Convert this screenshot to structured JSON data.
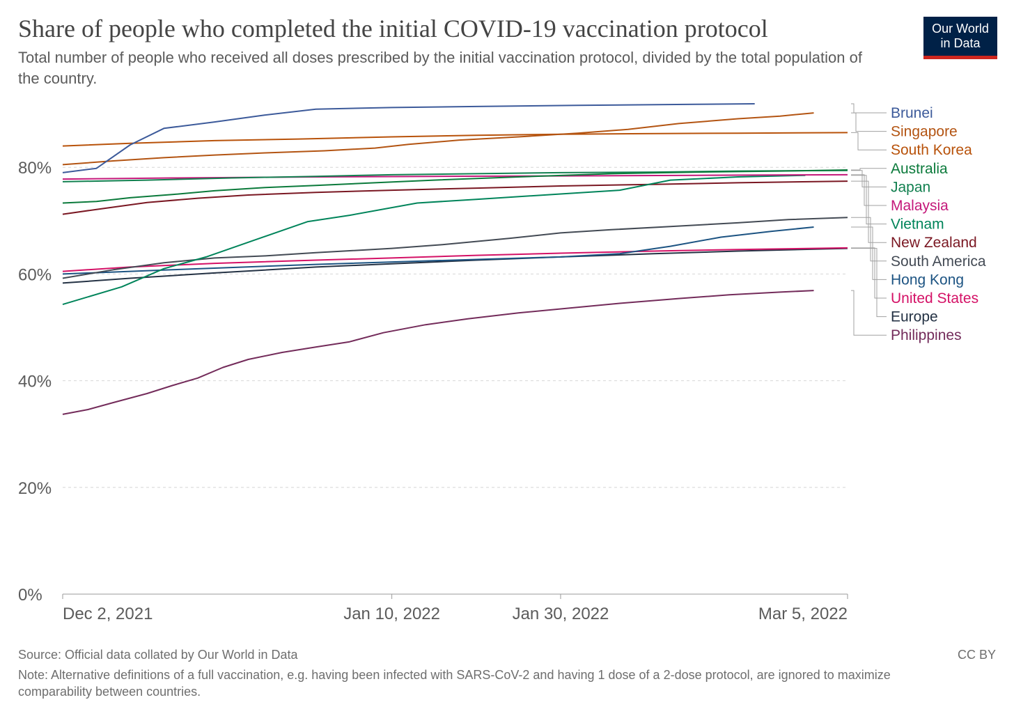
{
  "header": {
    "title": "Share of people who completed the initial COVID-19 vaccination protocol",
    "subtitle": "Total number of people who received all doses prescribed by the initial vaccination protocol, divided by the total population of the country."
  },
  "logo": {
    "line1": "Our World",
    "line2": "in Data"
  },
  "footer": {
    "source": "Source: Official data collated by Our World in Data",
    "note": "Note: Alternative definitions of a full vaccination, e.g. having been infected with SARS-CoV-2 and having 1 dose of a 2-dose protocol, are ignored to maximize comparability between countries.",
    "license": "CC BY"
  },
  "colors": {
    "logo_bg": "#002147",
    "logo_bar": "#ce261e"
  },
  "chart_data": {
    "type": "line",
    "x_start": "2021-12-02",
    "x_end": "2022-03-05",
    "ylim": [
      0,
      100
    ],
    "grid": true,
    "legend_placement": "right",
    "x_ticks": [
      {
        "label": "Dec 2, 2021",
        "date": "2021-12-02"
      },
      {
        "label": "Jan 10, 2022",
        "date": "2022-01-10"
      },
      {
        "label": "Jan 30, 2022",
        "date": "2022-01-30"
      },
      {
        "label": "Mar 5, 2022",
        "date": "2022-03-05"
      }
    ],
    "y_ticks": [
      {
        "label": "0%",
        "value": 0
      },
      {
        "label": "20%",
        "value": 20
      },
      {
        "label": "40%",
        "value": 40
      },
      {
        "label": "60%",
        "value": 60
      },
      {
        "label": "80%",
        "value": 80
      }
    ],
    "series": [
      {
        "name": "Brunei",
        "color": "#3c5a9a",
        "points": [
          [
            "2021-12-02",
            79.0
          ],
          [
            "2021-12-06",
            79.8
          ],
          [
            "2021-12-10",
            84.2
          ],
          [
            "2021-12-14",
            87.3
          ],
          [
            "2021-12-20",
            88.5
          ],
          [
            "2021-12-26",
            89.8
          ],
          [
            "2022-01-01",
            90.9
          ],
          [
            "2022-01-10",
            91.2
          ],
          [
            "2022-01-20",
            91.4
          ],
          [
            "2022-02-01",
            91.6
          ],
          [
            "2022-02-15",
            91.8
          ],
          [
            "2022-02-22",
            91.9
          ]
        ]
      },
      {
        "name": "Singapore",
        "color": "#b35412",
        "points": [
          [
            "2021-12-02",
            80.5
          ],
          [
            "2021-12-08",
            81.2
          ],
          [
            "2021-12-14",
            81.8
          ],
          [
            "2021-12-20",
            82.3
          ],
          [
            "2021-12-26",
            82.7
          ],
          [
            "2022-01-02",
            83.1
          ],
          [
            "2022-01-08",
            83.6
          ],
          [
            "2022-01-12",
            84.3
          ],
          [
            "2022-01-18",
            85.1
          ],
          [
            "2022-01-25",
            85.7
          ],
          [
            "2022-02-01",
            86.4
          ],
          [
            "2022-02-07",
            87.1
          ],
          [
            "2022-02-13",
            88.2
          ],
          [
            "2022-02-20",
            89.1
          ],
          [
            "2022-02-25",
            89.6
          ],
          [
            "2022-03-01",
            90.2
          ]
        ]
      },
      {
        "name": "South Korea",
        "color": "#b8520a",
        "points": [
          [
            "2021-12-02",
            84.0
          ],
          [
            "2021-12-10",
            84.5
          ],
          [
            "2021-12-20",
            85.0
          ],
          [
            "2021-12-30",
            85.3
          ],
          [
            "2022-01-10",
            85.7
          ],
          [
            "2022-01-20",
            86.0
          ],
          [
            "2022-01-30",
            86.2
          ],
          [
            "2022-02-09",
            86.3
          ],
          [
            "2022-02-20",
            86.4
          ],
          [
            "2022-03-05",
            86.5
          ]
        ]
      },
      {
        "name": "Australia",
        "color": "#0b7a3b",
        "points": [
          [
            "2021-12-02",
            73.3
          ],
          [
            "2021-12-06",
            73.6
          ],
          [
            "2021-12-10",
            74.3
          ],
          [
            "2021-12-15",
            74.9
          ],
          [
            "2021-12-20",
            75.6
          ],
          [
            "2021-12-26",
            76.2
          ],
          [
            "2022-01-01",
            76.6
          ],
          [
            "2022-01-08",
            77.1
          ],
          [
            "2022-01-15",
            77.6
          ],
          [
            "2022-01-25",
            78.2
          ],
          [
            "2022-02-05",
            78.8
          ],
          [
            "2022-02-15",
            79.1
          ],
          [
            "2022-02-25",
            79.3
          ],
          [
            "2022-03-05",
            79.5
          ]
        ]
      },
      {
        "name": "Japan",
        "color": "#128050",
        "points": [
          [
            "2021-12-02",
            77.3
          ],
          [
            "2021-12-12",
            77.6
          ],
          [
            "2021-12-22",
            78.0
          ],
          [
            "2022-01-01",
            78.3
          ],
          [
            "2022-01-10",
            78.6
          ],
          [
            "2022-01-20",
            78.8
          ],
          [
            "2022-01-30",
            79.0
          ],
          [
            "2022-02-10",
            79.1
          ],
          [
            "2022-02-20",
            79.3
          ],
          [
            "2022-03-05",
            79.4
          ]
        ]
      },
      {
        "name": "Malaysia",
        "color": "#c4187a",
        "points": [
          [
            "2021-12-02",
            77.8
          ],
          [
            "2021-12-15",
            78.0
          ],
          [
            "2022-01-01",
            78.2
          ],
          [
            "2022-01-15",
            78.3
          ],
          [
            "2022-02-01",
            78.4
          ],
          [
            "2022-02-15",
            78.5
          ],
          [
            "2022-03-05",
            78.6
          ]
        ]
      },
      {
        "name": "Vietnam",
        "color": "#00845a",
        "points": [
          [
            "2021-12-02",
            54.3
          ],
          [
            "2021-12-09",
            57.6
          ],
          [
            "2021-12-14",
            61.0
          ],
          [
            "2021-12-19",
            63.2
          ],
          [
            "2021-12-25",
            66.5
          ],
          [
            "2021-12-31",
            69.8
          ],
          [
            "2022-01-05",
            71.0
          ],
          [
            "2022-01-13",
            73.3
          ],
          [
            "2022-01-20",
            74.0
          ],
          [
            "2022-01-30",
            75.0
          ],
          [
            "2022-02-06",
            75.7
          ],
          [
            "2022-02-12",
            77.6
          ],
          [
            "2022-02-20",
            78.2
          ],
          [
            "2022-02-28",
            78.5
          ]
        ]
      },
      {
        "name": "New Zealand",
        "color": "#7a1722",
        "points": [
          [
            "2021-12-02",
            71.2
          ],
          [
            "2021-12-06",
            72.1
          ],
          [
            "2021-12-12",
            73.4
          ],
          [
            "2021-12-18",
            74.2
          ],
          [
            "2021-12-24",
            74.8
          ],
          [
            "2022-01-01",
            75.3
          ],
          [
            "2022-01-10",
            75.7
          ],
          [
            "2022-01-20",
            76.1
          ],
          [
            "2022-01-30",
            76.5
          ],
          [
            "2022-02-10",
            76.8
          ],
          [
            "2022-02-20",
            77.1
          ],
          [
            "2022-03-05",
            77.4
          ]
        ]
      },
      {
        "name": "South America",
        "color": "#434a54",
        "points": [
          [
            "2021-12-02",
            59.2
          ],
          [
            "2021-12-08",
            60.8
          ],
          [
            "2021-12-14",
            62.1
          ],
          [
            "2021-12-20",
            63.0
          ],
          [
            "2021-12-26",
            63.4
          ],
          [
            "2022-01-01",
            64.0
          ],
          [
            "2022-01-10",
            64.8
          ],
          [
            "2022-01-16",
            65.5
          ],
          [
            "2022-01-24",
            66.7
          ],
          [
            "2022-01-30",
            67.7
          ],
          [
            "2022-02-05",
            68.3
          ],
          [
            "2022-02-12",
            68.9
          ],
          [
            "2022-02-20",
            69.6
          ],
          [
            "2022-02-26",
            70.2
          ],
          [
            "2022-03-05",
            70.6
          ]
        ]
      },
      {
        "name": "Hong Kong",
        "color": "#1c5382",
        "points": [
          [
            "2021-12-02",
            60.0
          ],
          [
            "2021-12-15",
            60.8
          ],
          [
            "2022-01-01",
            61.8
          ],
          [
            "2022-01-15",
            62.5
          ],
          [
            "2022-01-30",
            63.2
          ],
          [
            "2022-02-06",
            63.8
          ],
          [
            "2022-02-12",
            65.2
          ],
          [
            "2022-02-18",
            66.9
          ],
          [
            "2022-02-24",
            68.0
          ],
          [
            "2022-03-01",
            68.8
          ]
        ]
      },
      {
        "name": "United States",
        "color": "#d41166",
        "points": [
          [
            "2021-12-02",
            60.5
          ],
          [
            "2021-12-10",
            61.3
          ],
          [
            "2021-12-20",
            62.0
          ],
          [
            "2022-01-01",
            62.6
          ],
          [
            "2022-01-10",
            63.0
          ],
          [
            "2022-01-20",
            63.5
          ],
          [
            "2022-01-30",
            63.9
          ],
          [
            "2022-02-10",
            64.3
          ],
          [
            "2022-02-20",
            64.6
          ],
          [
            "2022-03-05",
            64.9
          ]
        ]
      },
      {
        "name": "Europe",
        "color": "#243244",
        "points": [
          [
            "2021-12-02",
            58.3
          ],
          [
            "2021-12-10",
            59.2
          ],
          [
            "2021-12-20",
            60.2
          ],
          [
            "2022-01-01",
            61.3
          ],
          [
            "2022-01-10",
            61.9
          ],
          [
            "2022-01-20",
            62.6
          ],
          [
            "2022-01-30",
            63.2
          ],
          [
            "2022-02-10",
            63.8
          ],
          [
            "2022-02-20",
            64.3
          ],
          [
            "2022-03-05",
            64.8
          ]
        ]
      },
      {
        "name": "Philippines",
        "color": "#732b5a",
        "points": [
          [
            "2021-12-02",
            33.7
          ],
          [
            "2021-12-05",
            34.6
          ],
          [
            "2021-12-08",
            35.9
          ],
          [
            "2021-12-12",
            37.6
          ],
          [
            "2021-12-15",
            39.1
          ],
          [
            "2021-12-18",
            40.5
          ],
          [
            "2021-12-21",
            42.5
          ],
          [
            "2021-12-24",
            44.0
          ],
          [
            "2021-12-28",
            45.3
          ],
          [
            "2022-01-01",
            46.3
          ],
          [
            "2022-01-05",
            47.3
          ],
          [
            "2022-01-09",
            49.0
          ],
          [
            "2022-01-14",
            50.5
          ],
          [
            "2022-01-19",
            51.6
          ],
          [
            "2022-01-25",
            52.7
          ],
          [
            "2022-01-31",
            53.6
          ],
          [
            "2022-02-06",
            54.5
          ],
          [
            "2022-02-13",
            55.4
          ],
          [
            "2022-02-19",
            56.1
          ],
          [
            "2022-02-25",
            56.6
          ],
          [
            "2022-03-01",
            56.9
          ]
        ]
      }
    ]
  }
}
